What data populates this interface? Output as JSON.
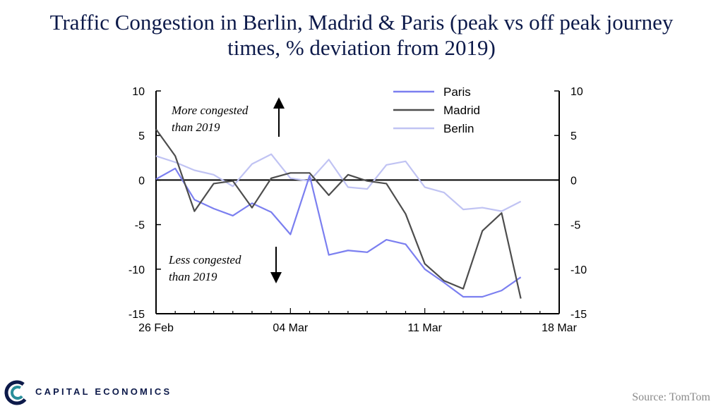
{
  "title_line1": "Traffic Congestion in Berlin, Madrid & Paris (peak vs off peak journey",
  "title_line2": "times, % deviation from 2019)",
  "annotations": {
    "up_line1": "More congested",
    "up_line2": "than 2019",
    "down_line1": "Less congested",
    "down_line2": "than 2019"
  },
  "source": "Source: TomTom",
  "logo_text": "CAPITAL ECONOMICS",
  "colors": {
    "title": "#0d1a4a",
    "paris": "#7b7ff0",
    "madrid": "#4d4d4d",
    "berlin": "#c0c3f3",
    "logo_blue": "#0d1a4a",
    "logo_teal": "#2a8f9b"
  },
  "chart_data": {
    "type": "line",
    "x_tick_labels": [
      "26 Feb",
      "04 Mar",
      "11 Mar",
      "18 Mar"
    ],
    "x_ticks_day": [
      0,
      7,
      14,
      21
    ],
    "ylim": [
      -15,
      10
    ],
    "y_ticks": [
      -15,
      -10,
      -5,
      0,
      5,
      10
    ],
    "y_tick_labels": [
      "-15",
      "-10",
      "-5",
      "0",
      "5",
      "10"
    ],
    "right_axis": true,
    "zero_line": true,
    "legend_position": "top-right",
    "x": [
      "26 Feb",
      "27 Feb",
      "28 Feb",
      "29 Feb",
      "01 Mar",
      "02 Mar",
      "03 Mar",
      "04 Mar",
      "05 Mar",
      "06 Mar",
      "07 Mar",
      "08 Mar",
      "09 Mar",
      "10 Mar",
      "11 Mar",
      "12 Mar",
      "13 Mar",
      "14 Mar",
      "15 Mar",
      "16 Mar"
    ],
    "series": [
      {
        "name": "Paris",
        "values": [
          0.1,
          1.3,
          -2.2,
          -3.2,
          -4.0,
          -2.6,
          -3.6,
          -6.1,
          0.5,
          -8.4,
          -7.9,
          -8.1,
          -6.7,
          -7.2,
          -10.0,
          -11.5,
          -13.1,
          -13.1,
          -12.4,
          -10.9
        ]
      },
      {
        "name": "Madrid",
        "values": [
          5.7,
          2.7,
          -3.5,
          -0.4,
          -0.1,
          -3.1,
          0.2,
          0.8,
          0.8,
          -1.7,
          0.6,
          -0.1,
          -0.4,
          -3.8,
          -9.4,
          -11.3,
          -12.2,
          -5.7,
          -3.7,
          -13.3
        ]
      },
      {
        "name": "Berlin",
        "values": [
          2.7,
          2.0,
          1.1,
          0.6,
          -0.7,
          1.8,
          2.9,
          0.2,
          -0.1,
          2.3,
          -0.8,
          -1.0,
          1.7,
          2.1,
          -0.8,
          -1.4,
          -3.3,
          -3.1,
          -3.5,
          -2.4
        ]
      }
    ]
  }
}
